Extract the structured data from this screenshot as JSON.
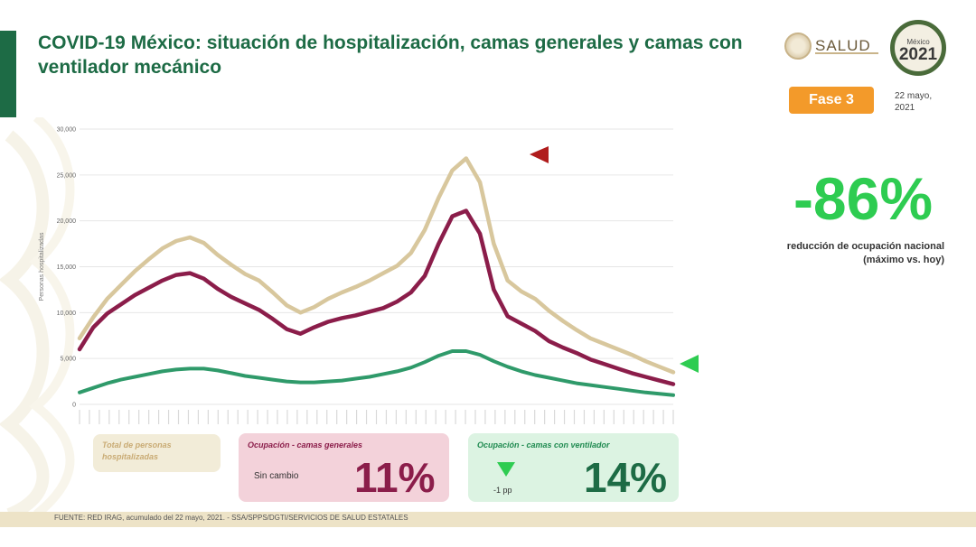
{
  "header": {
    "title": "COVID-19 México: situación de hospitalización, camas generales y camas con ventilador mecánico",
    "logo_text": "SALUD",
    "year_logo_top": "México",
    "year_logo_year": "2021",
    "phase_badge": "Fase 3",
    "date": "22 mayo, 2021"
  },
  "summary": {
    "reduction_value": "-86%",
    "reduction_label": "reducción de ocupación nacional (máximo vs. hoy)"
  },
  "colors": {
    "total": "#d8c79d",
    "general": "#8b1d4a",
    "ventilator": "#2f9a6a",
    "brand_green": "#1d6b45",
    "accent_green": "#2ecc51",
    "phase_orange": "#f39a2a",
    "peak_marker": "#b01c1c"
  },
  "chart_data": {
    "type": "line",
    "ylabel": "Personas hospitalizadas",
    "ylim": [
      0,
      30000
    ],
    "yticks": [
      0,
      5000,
      10000,
      15000,
      20000,
      25000,
      30000
    ],
    "ytick_labels": [
      "0",
      "5,000",
      "10,000",
      "15,000",
      "20,000",
      "25,000",
      "30,000"
    ],
    "grid": true,
    "x": [
      0,
      10,
      20,
      30,
      40,
      50,
      60,
      70,
      80,
      90,
      100,
      110,
      120,
      130,
      140,
      150,
      160,
      170,
      180,
      190,
      200,
      210,
      220,
      230,
      240,
      250,
      260,
      270,
      280,
      290,
      300,
      310,
      320,
      330,
      340,
      350,
      360,
      370,
      380,
      390,
      400,
      410,
      420,
      430
    ],
    "series": [
      {
        "name": "Total de personas hospitalizadas",
        "values": [
          7200,
          9500,
          11500,
          13000,
          14500,
          15800,
          17000,
          17800,
          18200,
          17600,
          16300,
          15200,
          14200,
          13500,
          12200,
          10800,
          10000,
          10600,
          11500,
          12200,
          12800,
          13500,
          14300,
          15100,
          16500,
          19000,
          22500,
          25500,
          26800,
          24200,
          17500,
          13500,
          12300,
          11500,
          10200,
          9100,
          8100,
          7200,
          6600,
          6000,
          5400,
          4700,
          4100,
          3500
        ]
      },
      {
        "name": "Ocupación - camas generales",
        "values": [
          6000,
          8400,
          9900,
          10900,
          11900,
          12700,
          13500,
          14100,
          14300,
          13700,
          12600,
          11700,
          11000,
          10300,
          9300,
          8200,
          7700,
          8400,
          9000,
          9400,
          9700,
          10100,
          10500,
          11200,
          12200,
          14000,
          17500,
          20500,
          21100,
          18600,
          12500,
          9600,
          8800,
          8000,
          6900,
          6200,
          5600,
          4900,
          4400,
          3900,
          3400,
          3000,
          2600,
          2200
        ]
      },
      {
        "name": "Ocupación - camas con ventilador",
        "values": [
          1300,
          1800,
          2300,
          2700,
          3000,
          3300,
          3600,
          3800,
          3900,
          3900,
          3700,
          3400,
          3100,
          2900,
          2700,
          2500,
          2400,
          2400,
          2500,
          2600,
          2800,
          3000,
          3300,
          3600,
          4000,
          4600,
          5300,
          5800,
          5800,
          5400,
          4700,
          4100,
          3600,
          3200,
          2900,
          2600,
          2300,
          2100,
          1900,
          1700,
          1500,
          1300,
          1150,
          1000
        ]
      }
    ]
  },
  "legend_boxes": {
    "total": {
      "title": "Total de personas hospitalizadas"
    },
    "general": {
      "title": "Ocupación - camas generales",
      "change": "Sin cambio",
      "value": "11%"
    },
    "ventilator": {
      "title": "Ocupación - camas con ventilador",
      "change": "-1 pp",
      "value": "14%"
    }
  },
  "footer": {
    "source": "FUENTE: RED IRAG, acumulado del 22 mayo, 2021. - SSA/SPPS/DGTI/SERVICIOS DE SALUD ESTATALES"
  }
}
